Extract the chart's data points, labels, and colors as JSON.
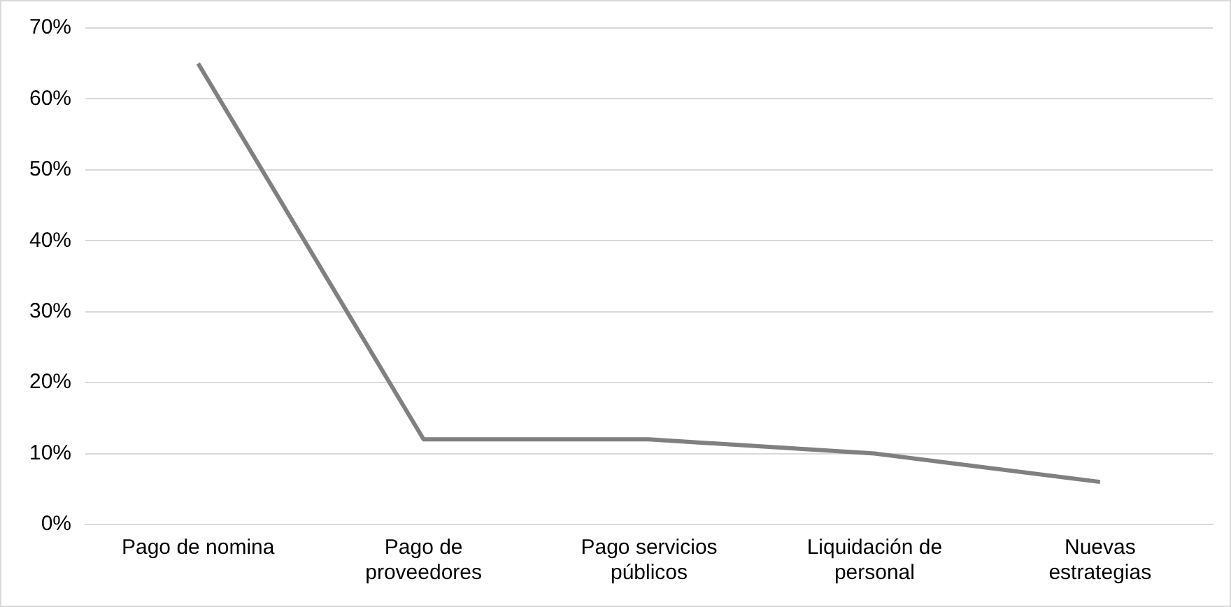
{
  "chart_data": {
    "type": "line",
    "categories": [
      "Pago de nomina",
      "Pago de proveedores",
      "Pago servicios públicos",
      "Liquidación de personal",
      "Nuevas estrategias"
    ],
    "series": [
      {
        "color": "#808080",
        "values": [
          65,
          12,
          12,
          10,
          6
        ]
      }
    ],
    "ylim": [
      0,
      70
    ],
    "yticks": [
      {
        "value": 0,
        "label": "0%"
      },
      {
        "value": 10,
        "label": "10%"
      },
      {
        "value": 20,
        "label": "20%"
      },
      {
        "value": 30,
        "label": "30%"
      },
      {
        "value": 40,
        "label": "40%"
      },
      {
        "value": 50,
        "label": "50%"
      },
      {
        "value": 60,
        "label": "60%"
      },
      {
        "value": 70,
        "label": "70%"
      }
    ],
    "grid": "y",
    "legend": false,
    "marker": "none",
    "line_style": "solid"
  }
}
